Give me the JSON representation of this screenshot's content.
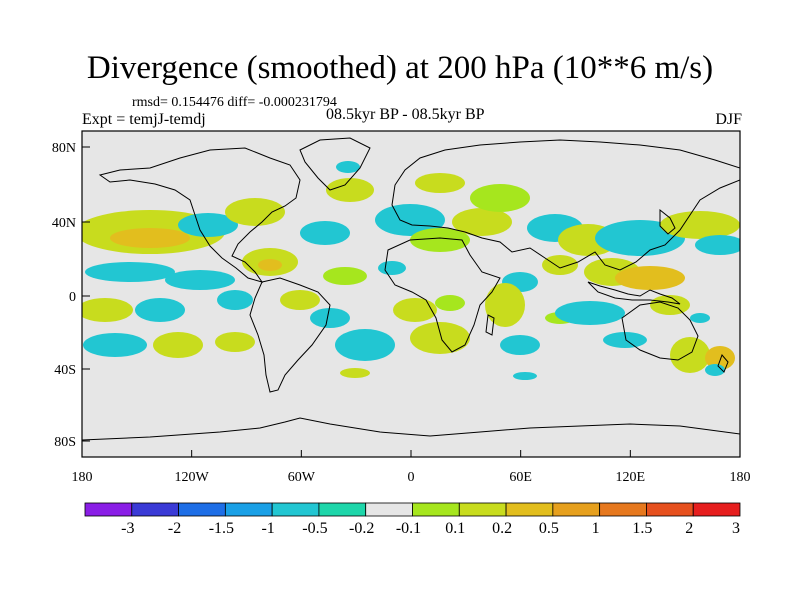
{
  "header": {
    "title": "Divergence (smoothed) at 200 hPa (10**6 m/s)",
    "stats": "rmsd= 0.154476 diff= -0.000231794",
    "experiment": "Expt = temjJ-temdj",
    "period": "08.5kyr BP - 08.5kyr BP",
    "season": "DJF"
  },
  "map": {
    "background_color": "#e6e6e6",
    "lat_ticks": [
      "80N",
      "40N",
      "0",
      "40S",
      "80S"
    ],
    "lon_ticks": [
      "180",
      "120W",
      "60W",
      "0",
      "60E",
      "120E",
      "180"
    ]
  },
  "colorbar": {
    "colors": [
      "#8a1ee6",
      "#3a3ad6",
      "#1e6ee6",
      "#1aa0e6",
      "#22c6d2",
      "#1ed6aa",
      "#e6e6e6",
      "#a6e61e",
      "#c8dc1e",
      "#e2be1e",
      "#e6a01e",
      "#e6781e",
      "#e6501e",
      "#e61e1e"
    ],
    "labels": [
      "-3",
      "-2",
      "-1.5",
      "-1",
      "-0.5",
      "-0.2",
      "-0.1",
      "0.1",
      "0.2",
      "0.5",
      "1",
      "1.5",
      "2",
      "3"
    ]
  }
}
